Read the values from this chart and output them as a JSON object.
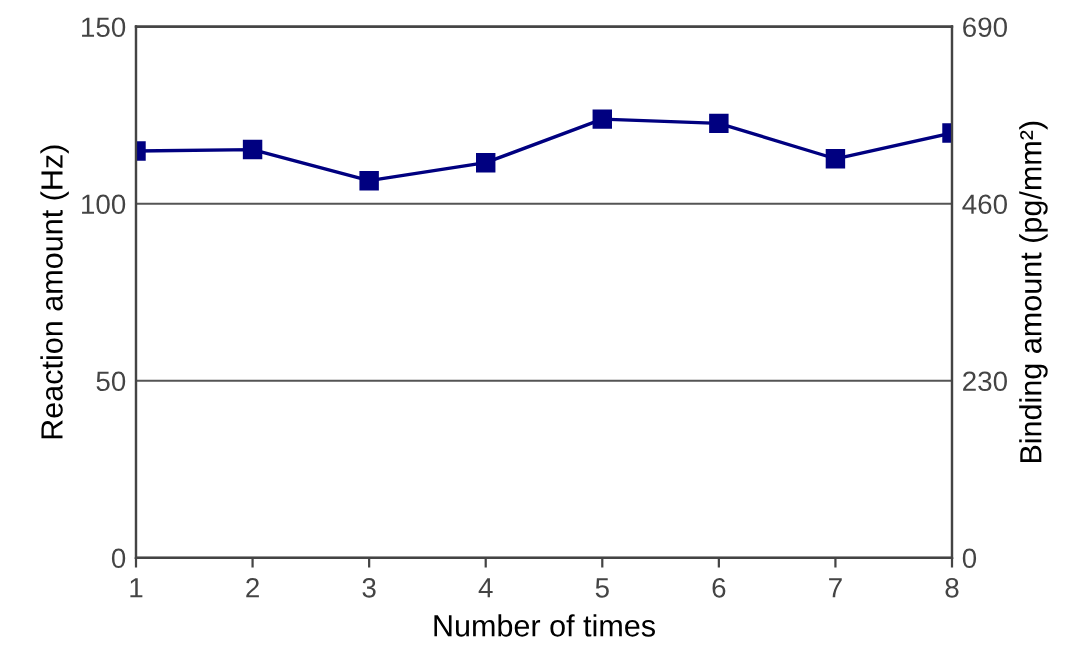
{
  "chart_data": {
    "type": "line",
    "xlabel": "Number of times",
    "ylabel": "Reaction amount (Hz)",
    "y2label": "Binding amount (pg/mm²)",
    "categories": [
      "1",
      "2",
      "3",
      "4",
      "5",
      "6",
      "7",
      "8"
    ],
    "series": [
      {
        "color": "#000080",
        "values": [
          114.9,
          115.3,
          106.5,
          111.6,
          123.9,
          122.7,
          112.7,
          120.0
        ]
      }
    ],
    "ylim": [
      0,
      150
    ],
    "yticks": [
      0,
      50,
      100,
      150
    ],
    "y2lim": [
      0,
      690
    ],
    "y2ticks": [
      0,
      230,
      460,
      690
    ],
    "grid": "y",
    "marker": "square",
    "line_style": "solid"
  }
}
